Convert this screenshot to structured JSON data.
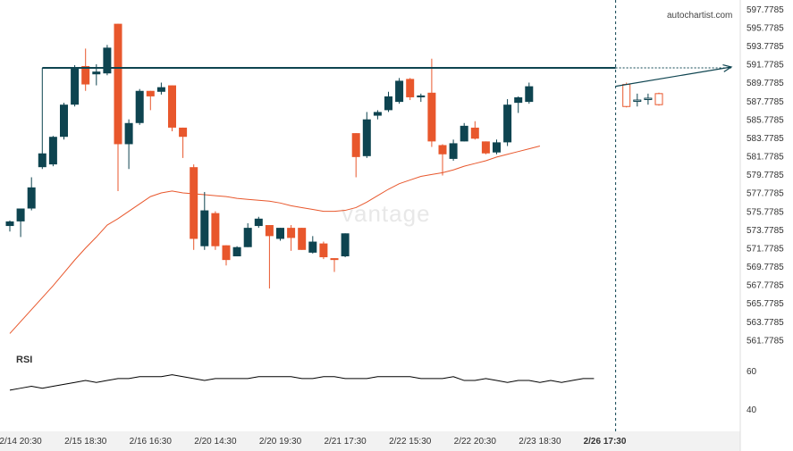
{
  "brand": "autochartist.com",
  "watermark": "vantage",
  "colors": {
    "bull": "#0e4450",
    "bear": "#e8572c",
    "ma": "#e8572c",
    "resistance": "#0e4450",
    "rsi": "#000000",
    "grid_bg": "#f7f7f7",
    "axis_text": "#333333"
  },
  "chart_data": [
    {
      "type": "candlestick",
      "title": "",
      "y_ticks": [
        "597.7785",
        "595.7785",
        "593.7785",
        "591.7785",
        "589.7785",
        "587.7785",
        "585.7785",
        "583.7785",
        "581.7785",
        "579.7785",
        "577.7785",
        "575.7785",
        "573.7785",
        "571.7785",
        "569.7785",
        "567.7785",
        "565.7785",
        "563.7785",
        "561.7785"
      ],
      "ylim": [
        560.7,
        598.3
      ],
      "x_tick_labels": [
        "2/14 20:30",
        "2/15 18:30",
        "2/16 16:30",
        "2/20 14:30",
        "2/20 19:30",
        "2/21 17:30",
        "2/22 15:30",
        "2/22 20:30",
        "2/23 18:30",
        "2/26 17:30"
      ],
      "x_tick_index": [
        1,
        7,
        13,
        19,
        25,
        31,
        37,
        43,
        49,
        55
      ],
      "resistance_level": 591.4,
      "resistance_start_index": 3,
      "current_index": 56,
      "forecast_target": 591.5,
      "candles": [
        {
          "o": 574.2,
          "h": 574.8,
          "l": 573.6,
          "c": 574.7
        },
        {
          "o": 574.7,
          "h": 576.0,
          "l": 573.0,
          "c": 576.1
        },
        {
          "o": 576.1,
          "h": 579.5,
          "l": 575.9,
          "c": 578.4
        },
        {
          "o": 580.6,
          "h": 591.4,
          "l": 580.4,
          "c": 582.1
        },
        {
          "o": 580.9,
          "h": 584.0,
          "l": 580.7,
          "c": 583.9
        },
        {
          "o": 583.9,
          "h": 587.6,
          "l": 583.6,
          "c": 587.4
        },
        {
          "o": 587.4,
          "h": 591.7,
          "l": 587.2,
          "c": 591.4
        },
        {
          "o": 591.6,
          "h": 593.5,
          "l": 588.9,
          "c": 589.6
        },
        {
          "o": 590.7,
          "h": 591.8,
          "l": 589.5,
          "c": 591.0
        },
        {
          "o": 590.8,
          "h": 593.9,
          "l": 590.6,
          "c": 593.6
        },
        {
          "o": 596.2,
          "h": 596.2,
          "l": 578.0,
          "c": 583.1
        },
        {
          "o": 583.1,
          "h": 585.8,
          "l": 580.4,
          "c": 585.4
        },
        {
          "o": 585.4,
          "h": 589.1,
          "l": 585.2,
          "c": 588.9
        },
        {
          "o": 588.9,
          "h": 588.9,
          "l": 586.8,
          "c": 588.3
        },
        {
          "o": 588.8,
          "h": 589.8,
          "l": 588.5,
          "c": 589.3
        },
        {
          "o": 589.5,
          "h": 589.5,
          "l": 584.5,
          "c": 584.9
        },
        {
          "o": 584.9,
          "h": 584.9,
          "l": 581.6,
          "c": 583.9
        },
        {
          "o": 580.6,
          "h": 580.9,
          "l": 571.6,
          "c": 572.8
        },
        {
          "o": 572.0,
          "h": 577.9,
          "l": 571.6,
          "c": 575.9
        },
        {
          "o": 575.6,
          "h": 575.8,
          "l": 571.6,
          "c": 572.0
        },
        {
          "o": 572.1,
          "h": 572.1,
          "l": 569.9,
          "c": 570.5
        },
        {
          "o": 570.9,
          "h": 572.0,
          "l": 570.9,
          "c": 571.9
        },
        {
          "o": 571.9,
          "h": 574.5,
          "l": 571.9,
          "c": 574.0
        },
        {
          "o": 574.2,
          "h": 575.2,
          "l": 574.0,
          "c": 575.0
        },
        {
          "o": 574.3,
          "h": 574.3,
          "l": 567.4,
          "c": 573.1
        },
        {
          "o": 572.8,
          "h": 574.0,
          "l": 572.6,
          "c": 574.0
        },
        {
          "o": 574.0,
          "h": 574.3,
          "l": 571.5,
          "c": 572.9
        },
        {
          "o": 574.0,
          "h": 574.0,
          "l": 571.6,
          "c": 571.6
        },
        {
          "o": 571.3,
          "h": 573.1,
          "l": 571.2,
          "c": 572.5
        },
        {
          "o": 572.3,
          "h": 572.5,
          "l": 570.6,
          "c": 570.8
        },
        {
          "o": 570.7,
          "h": 570.7,
          "l": 569.2,
          "c": 570.5
        },
        {
          "o": 570.9,
          "h": 573.4,
          "l": 570.8,
          "c": 573.4
        },
        {
          "o": 584.3,
          "h": 584.3,
          "l": 579.5,
          "c": 581.7
        },
        {
          "o": 581.8,
          "h": 586.6,
          "l": 581.6,
          "c": 585.8
        },
        {
          "o": 586.2,
          "h": 586.8,
          "l": 585.8,
          "c": 586.6
        },
        {
          "o": 586.8,
          "h": 588.8,
          "l": 586.6,
          "c": 588.3
        },
        {
          "o": 587.7,
          "h": 590.3,
          "l": 587.5,
          "c": 590.0
        },
        {
          "o": 590.2,
          "h": 590.3,
          "l": 587.9,
          "c": 588.2
        },
        {
          "o": 588.2,
          "h": 588.6,
          "l": 587.7,
          "c": 588.4
        },
        {
          "o": 588.7,
          "h": 592.4,
          "l": 582.8,
          "c": 583.4
        },
        {
          "o": 583.0,
          "h": 583.1,
          "l": 579.7,
          "c": 582.0
        },
        {
          "o": 581.5,
          "h": 583.6,
          "l": 581.3,
          "c": 583.2
        },
        {
          "o": 583.4,
          "h": 585.4,
          "l": 583.4,
          "c": 585.1
        },
        {
          "o": 584.9,
          "h": 585.6,
          "l": 583.6,
          "c": 583.7
        },
        {
          "o": 583.4,
          "h": 583.4,
          "l": 582.0,
          "c": 582.1
        },
        {
          "o": 582.2,
          "h": 583.6,
          "l": 582.0,
          "c": 583.3
        },
        {
          "o": 583.3,
          "h": 588.0,
          "l": 582.9,
          "c": 587.4
        },
        {
          "o": 587.6,
          "h": 588.3,
          "l": 586.5,
          "c": 588.2
        },
        {
          "o": 587.7,
          "h": 589.8,
          "l": 587.5,
          "c": 589.4
        }
      ],
      "forecast_candles": [
        {
          "o": 589.6,
          "h": 589.8,
          "l": 587.1,
          "c": 587.2
        },
        {
          "o": 587.8,
          "h": 588.6,
          "l": 587.2,
          "c": 587.9
        },
        {
          "o": 588.0,
          "h": 588.6,
          "l": 587.4,
          "c": 588.1
        },
        {
          "o": 588.6,
          "h": 588.7,
          "l": 587.3,
          "c": 587.4
        }
      ],
      "ma_series": [
        562.5,
        563.8,
        565.1,
        566.4,
        567.7,
        569.1,
        570.5,
        571.8,
        573.0,
        574.3,
        575.0,
        575.8,
        576.6,
        577.4,
        577.8,
        578.0,
        577.8,
        577.7,
        577.6,
        577.5,
        577.4,
        577.2,
        577.1,
        577.0,
        576.9,
        576.7,
        576.4,
        576.2,
        576.0,
        575.8,
        575.8,
        575.9,
        576.2,
        576.8,
        577.5,
        578.2,
        578.8,
        579.2,
        579.6,
        579.8,
        580.0,
        580.3,
        580.7,
        581.0,
        581.3,
        581.7,
        582.0,
        582.3,
        582.6,
        582.9
      ],
      "ma_start_index": 0
    },
    {
      "type": "line",
      "title": "RSI",
      "y_ticks": [
        "60",
        "40"
      ],
      "ylim": [
        30,
        68
      ],
      "values": [
        50,
        51,
        52,
        51,
        52,
        53,
        54,
        55,
        54,
        55,
        56,
        56,
        57,
        57,
        57,
        58,
        57,
        56,
        55,
        56,
        56,
        56,
        56,
        57,
        57,
        57,
        57,
        56,
        56,
        57,
        57,
        56,
        56,
        56,
        57,
        57,
        57,
        57,
        56,
        56,
        56,
        57,
        55,
        55,
        56,
        55,
        54,
        55,
        55,
        54,
        55,
        54,
        55,
        56,
        56
      ]
    }
  ]
}
